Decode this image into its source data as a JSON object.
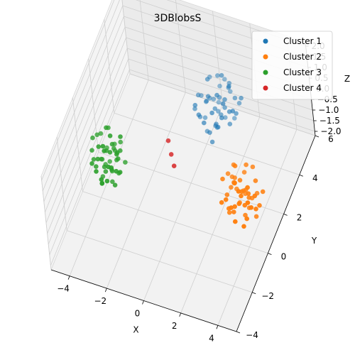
{
  "chart_data": {
    "type": "scatter",
    "projection": "3d",
    "title": "3DBlobsS",
    "xlabel": "X",
    "ylabel": "Y",
    "zlabel": "Z",
    "xlim": [
      -5,
      5
    ],
    "ylim": [
      -4,
      6
    ],
    "zlim": [
      -2.2,
      2.2
    ],
    "x_ticks": [
      "−4",
      "−2",
      "0",
      "2",
      "4"
    ],
    "y_ticks": [
      "−4",
      "−2",
      "0",
      "2",
      "4",
      "6"
    ],
    "z_ticks": [
      "−2.0",
      "−1.5",
      "−1.0",
      "−0.5",
      "0.0",
      "0.5",
      "1.0",
      "1.5",
      "2.0"
    ],
    "legend": {
      "placement": "top-right"
    },
    "grid": true,
    "series": [
      {
        "name": "Cluster 1",
        "color": "#1f77b4",
        "points": [
          [
            0.8,
            3.2,
            1.0
          ],
          [
            1.2,
            3.6,
            0.7
          ],
          [
            0.4,
            2.9,
            0.2
          ],
          [
            1.6,
            3.4,
            0.9
          ],
          [
            1.0,
            4.0,
            1.3
          ],
          [
            0.6,
            3.7,
            0.4
          ],
          [
            1.4,
            2.8,
            0.1
          ],
          [
            1.9,
            3.9,
            0.6
          ],
          [
            0.2,
            3.3,
            0.8
          ],
          [
            1.1,
            3.1,
            -0.2
          ],
          [
            0.9,
            4.3,
            0.5
          ],
          [
            1.7,
            3.0,
            1.1
          ],
          [
            0.5,
            2.6,
            0.6
          ],
          [
            1.3,
            3.8,
            -0.4
          ],
          [
            2.1,
            3.5,
            0.3
          ],
          [
            0.7,
            3.5,
            1.5
          ],
          [
            1.5,
            4.2,
            0.9
          ],
          [
            0.3,
            3.9,
            0.0
          ],
          [
            1.2,
            2.7,
            0.8
          ],
          [
            1.8,
            3.3,
            -0.1
          ],
          [
            0.6,
            3.1,
            -0.6
          ],
          [
            1.0,
            3.4,
            0.3
          ],
          [
            1.4,
            3.7,
            1.7
          ],
          [
            0.8,
            2.5,
            0.4
          ],
          [
            2.0,
            4.1,
            0.2
          ],
          [
            1.1,
            4.5,
            0.7
          ],
          [
            0.4,
            3.4,
            -0.3
          ],
          [
            1.6,
            2.9,
            0.5
          ],
          [
            0.9,
            3.6,
            -0.8
          ],
          [
            1.3,
            3.2,
            1.2
          ],
          [
            2.3,
            3.8,
            0.8
          ],
          [
            0.1,
            3.0,
            0.4
          ],
          [
            1.7,
            4.0,
            -0.5
          ],
          [
            0.5,
            4.1,
            1.0
          ],
          [
            1.2,
            3.0,
            0.0
          ],
          [
            0.9,
            2.8,
            -0.3
          ],
          [
            1.5,
            3.5,
            0.4
          ],
          [
            0.7,
            3.9,
            0.2
          ],
          [
            1.9,
            3.2,
            0.6
          ],
          [
            1.0,
            3.7,
            -0.1
          ],
          [
            1.4,
            4.4,
            0.3
          ],
          [
            0.3,
            2.7,
            0.9
          ],
          [
            1.8,
            3.6,
            1.4
          ],
          [
            0.6,
            3.3,
            0.6
          ],
          [
            1.1,
            2.6,
            -0.5
          ],
          [
            2.2,
            3.0,
            0.9
          ],
          [
            0.8,
            4.2,
            -0.2
          ],
          [
            1.3,
            3.4,
            0.1
          ],
          [
            1.6,
            3.9,
            1.0
          ],
          [
            0.2,
            3.6,
            0.5
          ]
        ]
      },
      {
        "name": "Cluster 2",
        "color": "#ff7f0e",
        "points": [
          [
            3.0,
            1.0,
            -0.4
          ],
          [
            3.4,
            0.5,
            -0.8
          ],
          [
            2.6,
            1.3,
            -1.0
          ],
          [
            3.8,
            0.8,
            -0.2
          ],
          [
            3.2,
            1.6,
            -1.4
          ],
          [
            2.8,
            0.3,
            -0.6
          ],
          [
            3.6,
            1.2,
            -1.1
          ],
          [
            4.0,
            0.6,
            -0.9
          ],
          [
            2.4,
            0.9,
            -0.3
          ],
          [
            3.3,
            0.1,
            -1.3
          ],
          [
            3.1,
            1.9,
            -0.7
          ],
          [
            3.9,
            1.5,
            -0.5
          ],
          [
            2.7,
            0.7,
            -1.6
          ],
          [
            3.5,
            0.4,
            -0.1
          ],
          [
            4.2,
            1.1,
            -1.2
          ],
          [
            2.9,
            1.4,
            0.0
          ],
          [
            3.7,
            0.2,
            -1.5
          ],
          [
            2.5,
            1.7,
            -0.9
          ],
          [
            3.4,
            1.0,
            -1.8
          ],
          [
            4.1,
            0.9,
            -0.6
          ],
          [
            2.8,
            0.5,
            -1.2
          ],
          [
            3.2,
            1.2,
            -0.4
          ],
          [
            3.6,
            0.7,
            -1.0
          ],
          [
            3.0,
            1.8,
            -1.5
          ],
          [
            4.3,
            1.4,
            -0.8
          ],
          [
            2.6,
            0.2,
            -0.7
          ],
          [
            3.8,
            1.7,
            -1.3
          ],
          [
            3.1,
            0.8,
            -0.2
          ],
          [
            3.5,
            1.3,
            -1.7
          ],
          [
            2.9,
            1.1,
            -0.5
          ],
          [
            3.3,
            1.5,
            -1.1
          ],
          [
            4.0,
            0.3,
            -0.4
          ],
          [
            2.7,
            1.6,
            -0.8
          ],
          [
            3.6,
            1.9,
            -0.3
          ],
          [
            3.0,
            0.6,
            -1.4
          ],
          [
            3.4,
            0.9,
            -0.6
          ],
          [
            3.9,
            1.2,
            -1.9
          ],
          [
            2.5,
            1.0,
            -1.1
          ],
          [
            3.2,
            0.4,
            -0.9
          ],
          [
            3.7,
            1.0,
            -0.7
          ],
          [
            2.8,
            1.5,
            -1.2
          ],
          [
            3.3,
            1.8,
            -0.2
          ],
          [
            4.2,
            0.7,
            -1.0
          ],
          [
            3.0,
            1.3,
            -1.6
          ],
          [
            3.5,
            0.6,
            -0.5
          ],
          [
            2.6,
            1.8,
            -0.4
          ],
          [
            3.8,
            0.4,
            -1.3
          ],
          [
            3.1,
            0.2,
            -0.8
          ],
          [
            3.6,
            1.5,
            -1.4
          ],
          [
            2.4,
            1.5,
            -0.6
          ]
        ]
      },
      {
        "name": "Cluster 3",
        "color": "#2ca02c",
        "points": [
          [
            -3.2,
            -0.4,
            0.6
          ],
          [
            -2.8,
            -0.8,
            0.2
          ],
          [
            -3.6,
            -0.2,
            -0.1
          ],
          [
            -2.5,
            -0.6,
            0.9
          ],
          [
            -3.0,
            0.0,
            0.4
          ],
          [
            -3.4,
            -1.0,
            0.7
          ],
          [
            -2.7,
            -0.3,
            -0.4
          ],
          [
            -3.8,
            -0.7,
            0.3
          ],
          [
            -2.9,
            -1.2,
            0.0
          ],
          [
            -3.3,
            0.2,
            1.1
          ],
          [
            -2.6,
            -0.1,
            0.5
          ],
          [
            -3.5,
            -0.5,
            -0.6
          ],
          [
            -3.1,
            -0.9,
            1.3
          ],
          [
            -2.4,
            -0.7,
            0.1
          ],
          [
            -3.7,
            0.1,
            0.8
          ],
          [
            -3.0,
            -0.4,
            -0.3
          ],
          [
            -2.8,
            -1.1,
            0.6
          ],
          [
            -3.2,
            -0.2,
            1.5
          ],
          [
            -3.6,
            -0.9,
            0.2
          ],
          [
            -2.5,
            0.1,
            -0.2
          ],
          [
            -3.3,
            -0.6,
            0.0
          ],
          [
            -2.9,
            -0.3,
            0.9
          ],
          [
            -3.4,
            -1.3,
            0.4
          ],
          [
            -2.7,
            -0.8,
            -0.5
          ],
          [
            -3.1,
            0.3,
            0.3
          ],
          [
            -3.9,
            -0.4,
            1.0
          ],
          [
            -2.6,
            -0.5,
            0.7
          ],
          [
            -3.5,
            -0.1,
            -0.4
          ],
          [
            -3.0,
            -1.0,
            1.2
          ],
          [
            -2.8,
            -0.2,
            0.1
          ],
          [
            -3.2,
            -0.7,
            -0.1
          ],
          [
            -3.7,
            -1.1,
            0.5
          ],
          [
            -2.4,
            -0.3,
            1.4
          ],
          [
            -3.3,
            0.0,
            -0.3
          ],
          [
            -2.9,
            -0.6,
            0.8
          ],
          [
            -3.6,
            -0.3,
            0.0
          ],
          [
            -3.1,
            -1.4,
            0.2
          ],
          [
            -2.7,
            0.2,
            0.6
          ],
          [
            -3.4,
            -0.8,
            1.1
          ],
          [
            -3.0,
            -0.5,
            -0.7
          ],
          [
            -2.5,
            -0.9,
            0.3
          ],
          [
            -3.8,
            -0.1,
            0.9
          ],
          [
            -3.2,
            -1.2,
            -0.2
          ],
          [
            -2.6,
            -0.4,
            0.4
          ],
          [
            -3.5,
            0.2,
            0.1
          ],
          [
            -2.8,
            -0.6,
            1.6
          ],
          [
            -3.3,
            -1.0,
            -0.4
          ],
          [
            -3.9,
            -0.6,
            0.6
          ],
          [
            -3.0,
            0.1,
            0.2
          ],
          [
            -2.7,
            -1.0,
            0.5
          ]
        ]
      },
      {
        "name": "Cluster 4",
        "color": "#d62728",
        "points": [
          [
            -0.3,
            0.7,
            0.9
          ],
          [
            0.1,
            0.3,
            0.2
          ],
          [
            -0.1,
            0.5,
            0.5
          ]
        ]
      }
    ]
  }
}
